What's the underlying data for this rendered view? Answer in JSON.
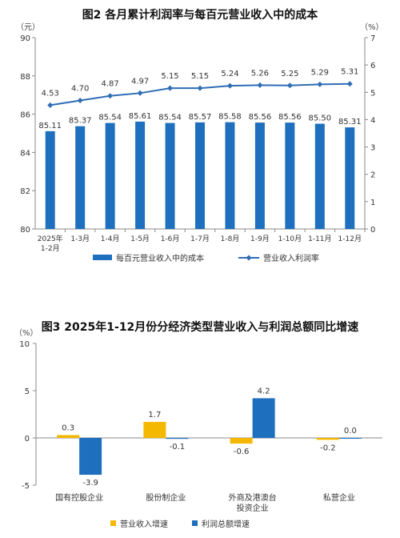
{
  "chart_data": [
    {
      "type": "bar+line",
      "title": "图2  各月累计利润率与每百元营业收入中的成本",
      "left_axis_unit": "（元）",
      "right_axis_unit": "（%）",
      "categories": [
        [
          "2025年",
          "1-2月"
        ],
        [
          "1-3月"
        ],
        [
          "1-4月"
        ],
        [
          "1-5月"
        ],
        [
          "1-6月"
        ],
        [
          "1-7月"
        ],
        [
          "1-8月"
        ],
        [
          "1-9月"
        ],
        [
          "1-10月"
        ],
        [
          "1-11月"
        ],
        [
          "1-12月"
        ]
      ],
      "left_ylim": [
        80,
        90
      ],
      "left_ticks": [
        80,
        82,
        84,
        86,
        88,
        90
      ],
      "right_ylim": [
        0,
        7
      ],
      "right_ticks": [
        0,
        1,
        2,
        3,
        4,
        5,
        6,
        7
      ],
      "series": [
        {
          "name": "每百元营业收入中的成本",
          "kind": "bar",
          "axis": "left",
          "color": "#1f6fbf",
          "values": [
            85.11,
            85.37,
            85.54,
            85.61,
            85.54,
            85.57,
            85.58,
            85.56,
            85.56,
            85.5,
            85.31
          ]
        },
        {
          "name": "营业收入利润率",
          "kind": "line",
          "axis": "right",
          "color": "#2f6db5",
          "values": [
            4.53,
            4.7,
            4.87,
            4.97,
            5.15,
            5.15,
            5.24,
            5.26,
            5.25,
            5.29,
            5.31
          ]
        }
      ],
      "legend_position": "bottom",
      "grid": false
    },
    {
      "type": "bar",
      "title": "图3  2025年1-12月份分经济类型营业收入与利润总额同比增速",
      "y_axis_unit": "（%）",
      "categories": [
        [
          "国有控股企业"
        ],
        [
          "股份制企业"
        ],
        [
          "外商及港澳台",
          "投资企业"
        ],
        [
          "私营企业"
        ]
      ],
      "ylim": [
        -5,
        10
      ],
      "y_ticks": [
        -5,
        0,
        5,
        10
      ],
      "series": [
        {
          "name": "营业收入增速",
          "color": "#f5b800",
          "values": [
            0.3,
            1.7,
            -0.6,
            -0.2
          ]
        },
        {
          "name": "利润总额增速",
          "color": "#1f6fbf",
          "values": [
            -3.9,
            -0.1,
            4.2,
            0.0
          ]
        }
      ],
      "legend_position": "bottom",
      "grid": false
    }
  ]
}
